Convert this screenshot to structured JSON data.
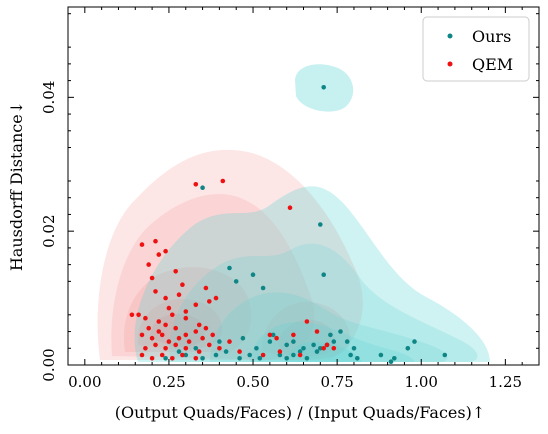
{
  "chart_data": {
    "type": "scatter",
    "title": "",
    "xlabel": "(Output Quads/Faces) / (Input Quads/Faces)↑",
    "ylabel": "Hausdorff Distance↓",
    "xlim": [
      -0.05,
      1.35
    ],
    "ylim": [
      0.0,
      0.0535
    ],
    "xticks": [
      "0.00",
      "0.25",
      "0.50",
      "0.75",
      "1.00",
      "1.25"
    ],
    "yticks": [
      "0.00",
      "0.02",
      "0.04"
    ],
    "legend_position": "top-right",
    "colors": {
      "Ours": "#0e8686",
      "QEM": "#ee1111",
      "Ours_density": "#5fd3d3",
      "QEM_density": "#f58c8c"
    },
    "series": [
      {
        "name": "Ours",
        "color": "#0e8686",
        "x": [
          0.71,
          0.7,
          0.71,
          0.73,
          0.35,
          0.43,
          0.45,
          0.5,
          0.53,
          0.56,
          0.4,
          0.47,
          0.55,
          0.6,
          0.62,
          0.64,
          0.65,
          0.68,
          0.7,
          0.72,
          0.74,
          0.76,
          0.78,
          0.8,
          0.39,
          0.42,
          0.46,
          0.49,
          0.52,
          0.58,
          0.6,
          0.62,
          0.66,
          0.69,
          0.79,
          0.81,
          0.88,
          0.91,
          0.92,
          0.96,
          0.98,
          1.07,
          0.24,
          0.28,
          0.3,
          0.33,
          0.35,
          0.51
        ],
        "y": [
          0.0415,
          0.021,
          0.0135,
          0.0045,
          0.0265,
          0.0145,
          0.0125,
          0.0135,
          0.0115,
          0.0045,
          0.0035,
          0.004,
          0.0035,
          0.003,
          0.0035,
          0.002,
          0.0025,
          0.003,
          0.0025,
          0.003,
          0.0035,
          0.005,
          0.0035,
          0.0025,
          0.0015,
          0.002,
          0.001,
          0.0015,
          0.001,
          0.0015,
          0.001,
          0.0015,
          0.001,
          0.002,
          0.0015,
          0.001,
          0.0015,
          0.0005,
          0.001,
          0.0025,
          0.0035,
          0.0015,
          0.001,
          0.002,
          0.0015,
          0.0025,
          0.001,
          0.0025
        ]
      },
      {
        "name": "QEM",
        "color": "#ee1111",
        "x": [
          0.33,
          0.41,
          0.61,
          0.17,
          0.21,
          0.22,
          0.19,
          0.24,
          0.2,
          0.27,
          0.29,
          0.36,
          0.21,
          0.24,
          0.28,
          0.33,
          0.25,
          0.3,
          0.37,
          0.39,
          0.16,
          0.18,
          0.22,
          0.26,
          0.3,
          0.34,
          0.14,
          0.19,
          0.22,
          0.24,
          0.27,
          0.3,
          0.33,
          0.36,
          0.17,
          0.2,
          0.23,
          0.25,
          0.28,
          0.31,
          0.35,
          0.38,
          0.43,
          0.18,
          0.21,
          0.24,
          0.27,
          0.3,
          0.34,
          0.37,
          0.4,
          0.17,
          0.2,
          0.23,
          0.26,
          0.29,
          0.33,
          0.55,
          0.62,
          0.66,
          0.69,
          0.72,
          0.58,
          0.64,
          0.71,
          0.57,
          0.74,
          0.53,
          0.46
        ],
        "y": [
          0.027,
          0.0275,
          0.0235,
          0.018,
          0.0185,
          0.0165,
          0.015,
          0.017,
          0.013,
          0.014,
          0.012,
          0.0115,
          0.011,
          0.01,
          0.0105,
          0.009,
          0.0085,
          0.008,
          0.0095,
          0.01,
          0.0075,
          0.007,
          0.0065,
          0.0075,
          0.007,
          0.006,
          0.0075,
          0.0055,
          0.005,
          0.006,
          0.0055,
          0.0045,
          0.005,
          0.0055,
          0.0045,
          0.004,
          0.0045,
          0.0035,
          0.004,
          0.0035,
          0.004,
          0.0045,
          0.0035,
          0.0025,
          0.003,
          0.0025,
          0.003,
          0.0025,
          0.002,
          0.003,
          0.0025,
          0.0015,
          0.001,
          0.0015,
          0.001,
          0.0015,
          0.001,
          0.0045,
          0.0045,
          0.0065,
          0.005,
          0.003,
          0.002,
          0.0015,
          0.0025,
          0.004,
          0.0025,
          0.0015,
          0.002
        ]
      }
    ]
  }
}
